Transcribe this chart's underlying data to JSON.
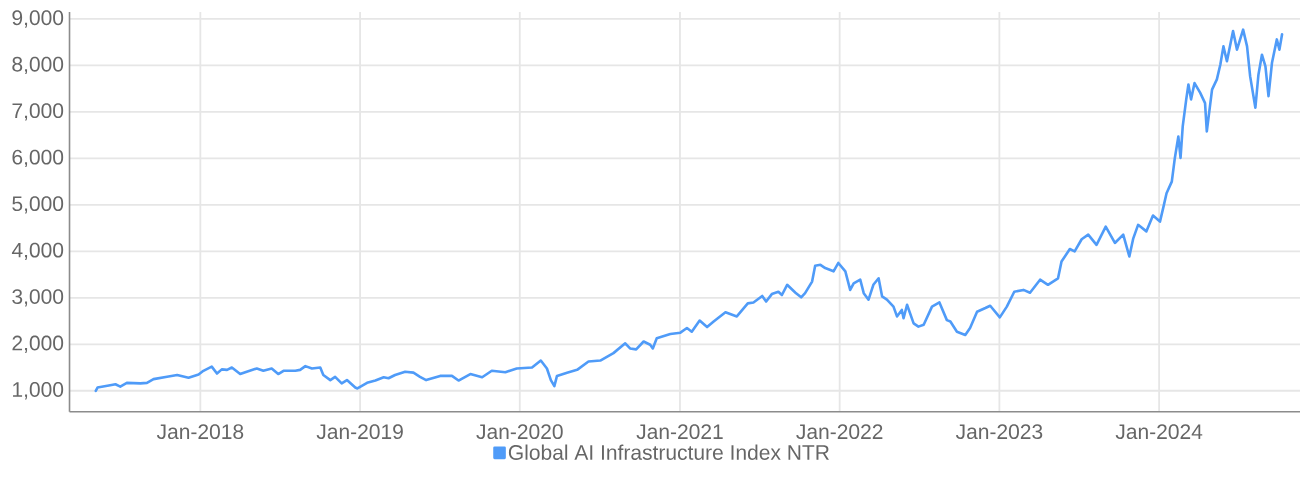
{
  "chart_data": {
    "type": "line",
    "x": [
      "2017-05-07",
      "2017-05-11",
      "2017-06-09",
      "2017-06-21",
      "2017-07-02",
      "2017-07-17",
      "2017-08-17",
      "2017-09-01",
      "2017-09-16",
      "2017-10-17",
      "2017-11-09",
      "2017-12-05",
      "2017-12-28",
      "2018-01-08",
      "2018-01-27",
      "2018-02-08",
      "2018-02-19",
      "2018-03-03",
      "2018-03-14",
      "2018-04-02",
      "2018-04-17",
      "2018-05-10",
      "2018-05-25",
      "2018-06-13",
      "2018-06-28",
      "2018-07-10",
      "2018-08-06",
      "2018-08-17",
      "2018-08-29",
      "2018-09-13",
      "2018-10-02",
      "2018-10-09",
      "2018-10-25",
      "2018-11-05",
      "2018-11-20",
      "2018-12-02",
      "2018-12-21",
      "2018-12-26",
      "2019-01-17",
      "2019-02-05",
      "2019-02-24",
      "2019-03-07",
      "2019-03-22",
      "2019-04-14",
      "2019-05-03",
      "2019-05-18",
      "2019-06-01",
      "2019-07-03",
      "2019-07-30",
      "2019-08-14",
      "2019-09-10",
      "2019-10-07",
      "2019-10-29",
      "2019-11-29",
      "2019-12-25",
      "2020-01-29",
      "2020-02-18",
      "2020-03-03",
      "2020-03-12",
      "2020-03-20",
      "2020-03-26",
      "2020-04-18",
      "2020-05-11",
      "2020-06-06",
      "2020-07-03",
      "2020-08-02",
      "2020-08-29",
      "2020-09-09",
      "2020-09-23",
      "2020-10-10",
      "2020-10-25",
      "2020-10-31",
      "2020-11-09",
      "2020-12-10",
      "2021-01-02",
      "2021-01-17",
      "2021-01-28",
      "2021-02-15",
      "2021-03-04",
      "2021-03-19",
      "2021-04-15",
      "2021-05-11",
      "2021-06-05",
      "2021-06-18",
      "2021-07-08",
      "2021-07-17",
      "2021-07-30",
      "2021-08-14",
      "2021-08-22",
      "2021-09-03",
      "2021-09-22",
      "2021-10-05",
      "2021-10-14",
      "2021-10-30",
      "2021-11-06",
      "2021-11-18",
      "2021-11-29",
      "2021-12-18",
      "2021-12-29",
      "2022-01-14",
      "2022-01-25",
      "2022-02-02",
      "2022-02-17",
      "2022-02-25",
      "2022-03-08",
      "2022-03-19",
      "2022-03-31",
      "2022-04-08",
      "2022-04-19",
      "2022-05-04",
      "2022-05-12",
      "2022-05-23",
      "2022-05-27",
      "2022-06-04",
      "2022-06-19",
      "2022-06-30",
      "2022-07-12",
      "2022-07-31",
      "2022-08-17",
      "2022-09-03",
      "2022-09-11",
      "2022-09-26",
      "2022-10-15",
      "2022-10-26",
      "2022-11-11",
      "2022-11-30",
      "2022-12-11",
      "2023-01-02",
      "2023-01-18",
      "2023-02-04",
      "2023-02-25",
      "2023-03-12",
      "2023-04-04",
      "2023-04-22",
      "2023-05-15",
      "2023-05-23",
      "2023-06-11",
      "2023-06-22",
      "2023-07-08",
      "2023-07-23",
      "2023-08-11",
      "2023-09-01",
      "2023-09-22",
      "2023-10-11",
      "2023-10-25",
      "2023-11-03",
      "2023-11-14",
      "2023-12-03",
      "2023-12-18",
      "2024-01-03",
      "2024-01-12",
      "2024-01-18",
      "2024-01-30",
      "2024-02-06",
      "2024-02-14",
      "2024-02-19",
      "2024-02-24",
      "2024-03-03",
      "2024-03-08",
      "2024-03-14",
      "2024-03-22",
      "2024-04-04",
      "2024-04-15",
      "2024-04-19",
      "2024-05-01",
      "2024-05-12",
      "2024-05-20",
      "2024-05-27",
      "2024-06-04",
      "2024-06-18",
      "2024-06-27",
      "2024-07-11",
      "2024-07-20",
      "2024-07-27",
      "2024-08-08",
      "2024-08-15",
      "2024-08-23",
      "2024-08-31",
      "2024-09-07",
      "2024-09-15",
      "2024-09-26",
      "2024-10-02",
      "2024-10-08"
    ],
    "series": [
      {
        "name": "Global AI Infrastructure Index NTR",
        "color": "#4f9bf8",
        "values": [
          1000,
          1070,
          1120,
          1140,
          1090,
          1170,
          1160,
          1170,
          1250,
          1300,
          1340,
          1280,
          1350,
          1430,
          1520,
          1370,
          1460,
          1450,
          1500,
          1360,
          1410,
          1480,
          1430,
          1480,
          1360,
          1430,
          1430,
          1450,
          1530,
          1480,
          1500,
          1340,
          1230,
          1300,
          1160,
          1230,
          1070,
          1050,
          1170,
          1220,
          1290,
          1270,
          1340,
          1410,
          1390,
          1300,
          1230,
          1320,
          1320,
          1220,
          1360,
          1290,
          1430,
          1400,
          1480,
          1500,
          1650,
          1480,
          1230,
          1100,
          1320,
          1390,
          1450,
          1630,
          1650,
          1810,
          2020,
          1910,
          1890,
          2060,
          1990,
          1910,
          2130,
          2220,
          2250,
          2350,
          2270,
          2510,
          2370,
          2490,
          2690,
          2600,
          2880,
          2900,
          3040,
          2920,
          3080,
          3130,
          3060,
          3280,
          3110,
          3010,
          3100,
          3350,
          3690,
          3710,
          3640,
          3570,
          3750,
          3570,
          3170,
          3310,
          3390,
          3100,
          2960,
          3280,
          3420,
          3030,
          2960,
          2810,
          2600,
          2740,
          2560,
          2850,
          2450,
          2380,
          2420,
          2810,
          2900,
          2520,
          2490,
          2270,
          2200,
          2350,
          2700,
          2780,
          2830,
          2580,
          2810,
          3130,
          3170,
          3110,
          3390,
          3280,
          3420,
          3780,
          4050,
          4000,
          4260,
          4360,
          4140,
          4530,
          4180,
          4360,
          3890,
          4280,
          4570,
          4430,
          4770,
          4640,
          5000,
          5250,
          5500,
          6010,
          6470,
          6010,
          6690,
          7270,
          7590,
          7270,
          7620,
          7410,
          7190,
          6580,
          7480,
          7700,
          8020,
          8410,
          8090,
          8740,
          8340,
          8770,
          8410,
          7770,
          7090,
          7800,
          8230,
          7980,
          7340,
          8060,
          8560,
          8340,
          8670
        ]
      }
    ],
    "xlim": [
      "2017-03-08",
      "2024-11-18"
    ],
    "ylim": [
      550,
      9150
    ],
    "xticks": [
      {
        "value": "2018-01-01",
        "label": "Jan-2018"
      },
      {
        "value": "2019-01-01",
        "label": "Jan-2019"
      },
      {
        "value": "2020-01-01",
        "label": "Jan-2020"
      },
      {
        "value": "2021-01-01",
        "label": "Jan-2021"
      },
      {
        "value": "2022-01-01",
        "label": "Jan-2022"
      },
      {
        "value": "2023-01-01",
        "label": "Jan-2023"
      },
      {
        "value": "2024-01-01",
        "label": "Jan-2024"
      }
    ],
    "yticks": [
      {
        "value": 1000,
        "label": "1,000"
      },
      {
        "value": 2000,
        "label": "2,000"
      },
      {
        "value": 3000,
        "label": "3,000"
      },
      {
        "value": 4000,
        "label": "4,000"
      },
      {
        "value": 5000,
        "label": "5,000"
      },
      {
        "value": 6000,
        "label": "6,000"
      },
      {
        "value": 7000,
        "label": "7,000"
      },
      {
        "value": 8000,
        "label": "8,000"
      },
      {
        "value": 9000,
        "label": "9,000"
      }
    ],
    "grid": true,
    "legend": "bottom"
  }
}
